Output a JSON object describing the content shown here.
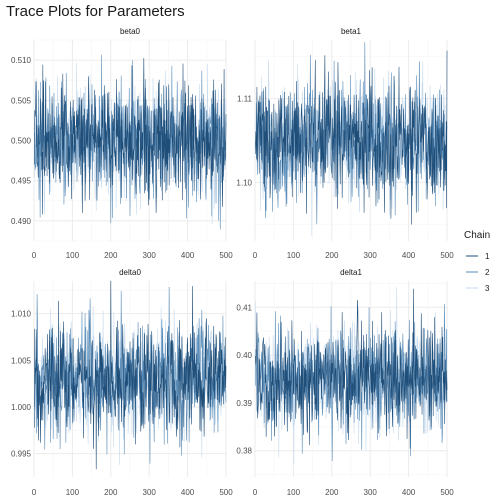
{
  "title": "Trace Plots for Parameters",
  "legend": {
    "title": "Chain",
    "placement": "right",
    "entries": [
      "1",
      "2",
      "3"
    ]
  },
  "colors": {
    "chain_1": "#1f4e79",
    "chain_2": "#5b8db8",
    "chain_3": "#c6dbef",
    "grid_major": "#ebebeb",
    "grid_minor": "#f5f5f5"
  },
  "chart_data": [
    {
      "type": "line",
      "title": "beta0",
      "xlim": [
        0,
        500
      ],
      "xticks": [
        "0",
        "100",
        "200",
        "300",
        "400",
        "500"
      ],
      "ylim": [
        0.4875,
        0.5125
      ],
      "yticks": [
        "0.490",
        "0.495",
        "0.500",
        "0.505",
        "0.510"
      ],
      "grid": true,
      "series_mean": 0.5,
      "series_sd": 0.0035,
      "series": [
        {
          "name": "1",
          "iterations": 500
        },
        {
          "name": "2",
          "iterations": 500
        },
        {
          "name": "3",
          "iterations": 500
        }
      ]
    },
    {
      "type": "line",
      "title": "beta1",
      "xlim": [
        0,
        500
      ],
      "xticks": [
        "0",
        "100",
        "200",
        "300",
        "400",
        "500"
      ],
      "ylim": [
        1.093,
        1.117
      ],
      "yticks": [
        "1.10",
        "1.11"
      ],
      "grid": true,
      "series_mean": 1.105,
      "series_sd": 0.0035,
      "series": [
        {
          "name": "1",
          "iterations": 500
        },
        {
          "name": "2",
          "iterations": 500
        },
        {
          "name": "3",
          "iterations": 500
        }
      ]
    },
    {
      "type": "line",
      "title": "delta0",
      "xlim": [
        0,
        500
      ],
      "xticks": [
        "0",
        "100",
        "200",
        "300",
        "400",
        "500"
      ],
      "ylim": [
        0.9925,
        1.0135
      ],
      "yticks": [
        "0.995",
        "1.000",
        "1.005",
        "1.010"
      ],
      "grid": true,
      "series_mean": 1.003,
      "series_sd": 0.003,
      "series": [
        {
          "name": "1",
          "iterations": 500
        },
        {
          "name": "2",
          "iterations": 500
        },
        {
          "name": "3",
          "iterations": 500
        }
      ]
    },
    {
      "type": "line",
      "title": "delta1",
      "xlim": [
        0,
        500
      ],
      "xticks": [
        "0",
        "100",
        "200",
        "300",
        "400",
        "500"
      ],
      "ylim": [
        0.3745,
        0.4155
      ],
      "yticks": [
        "0.38",
        "0.39",
        "0.40",
        "0.41"
      ],
      "grid": true,
      "series_mean": 0.395,
      "series_sd": 0.0055,
      "series": [
        {
          "name": "1",
          "iterations": 500
        },
        {
          "name": "2",
          "iterations": 500
        },
        {
          "name": "3",
          "iterations": 500
        }
      ]
    }
  ]
}
